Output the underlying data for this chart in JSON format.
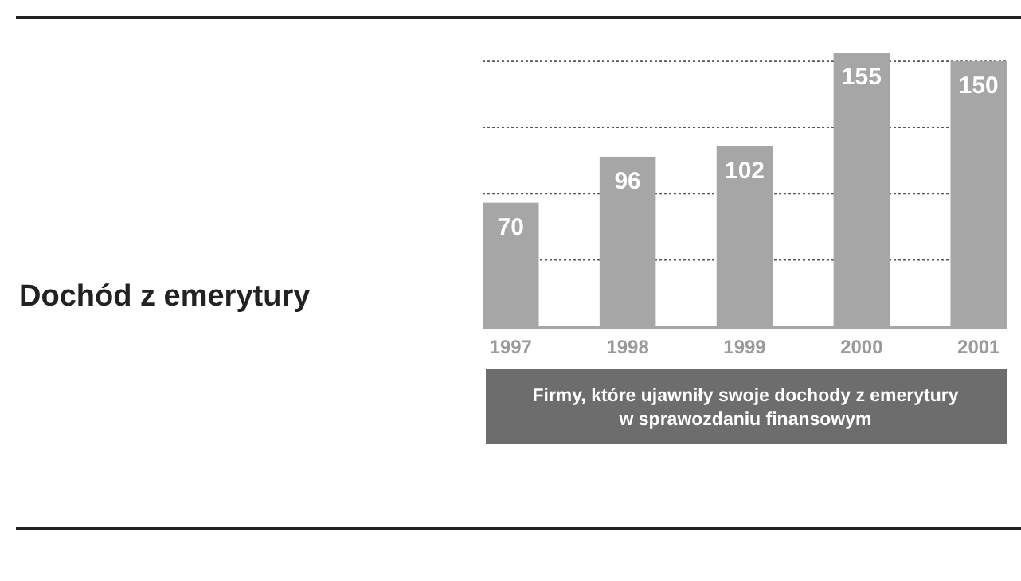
{
  "chart_data": {
    "type": "bar",
    "title": "Dochód z emerytury",
    "categories": [
      "1997",
      "1998",
      "1999",
      "2000",
      "2001"
    ],
    "values": [
      70,
      96,
      102,
      155,
      150
    ],
    "color": "#a7a6a7",
    "data_labels": true,
    "ylim": [
      0,
      155
    ],
    "yticks": [
      {
        "value": 37.5,
        "label": null
      },
      {
        "value": 75,
        "label": null
      },
      {
        "value": 112.5,
        "label": null
      },
      {
        "value": 150,
        "label": null
      }
    ],
    "tick_labels": "x",
    "grid": "y",
    "annotations": [
      "Firmy, które ujawniły swoje dochody z emerytury w sprawozdaniu finansowym"
    ]
  }
}
